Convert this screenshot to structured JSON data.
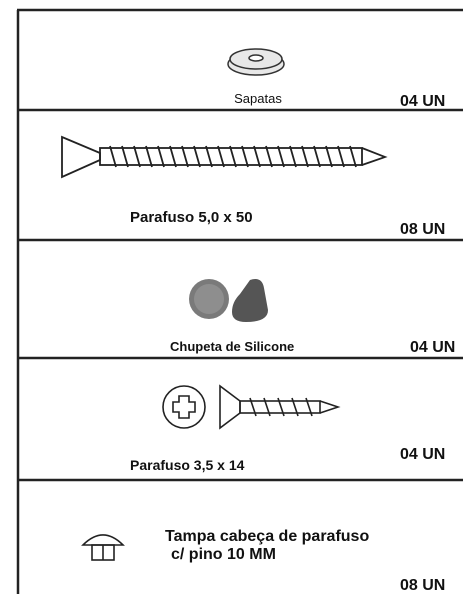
{
  "items": [
    {
      "label": [
        "Sapatas"
      ],
      "quantity": "04 UN"
    },
    {
      "label": [
        "Parafuso 5,0 x 50"
      ],
      "quantity": "08 UN"
    },
    {
      "label": [
        "Chupeta de Silicone"
      ],
      "quantity": "04 UN"
    },
    {
      "label": [
        "Parafuso 3,5 x 14"
      ],
      "quantity": "04 UN"
    },
    {
      "label": [
        "Tampa cabeça de parafuso",
        "c/ pino 10 MM"
      ],
      "quantity": "08 UN"
    }
  ]
}
